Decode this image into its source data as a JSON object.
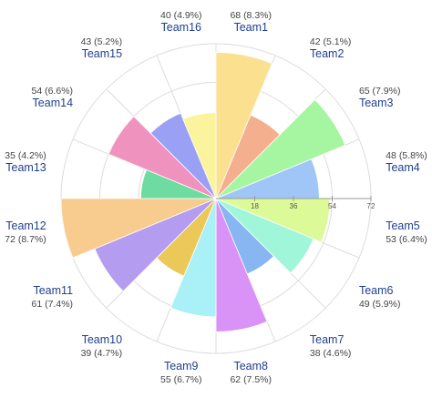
{
  "chart_data": {
    "type": "polar-area",
    "title": "",
    "radial_axis": {
      "min": 0,
      "max": 72,
      "ticks": [
        18,
        36,
        54,
        72
      ]
    },
    "grid": true,
    "legend": "none",
    "categories": [
      "Team1",
      "Team2",
      "Team3",
      "Team4",
      "Team5",
      "Team6",
      "Team7",
      "Team8",
      "Team9",
      "Team10",
      "Team11",
      "Team12",
      "Team13",
      "Team14",
      "Team15",
      "Team16"
    ],
    "values": [
      68,
      42,
      65,
      48,
      53,
      49,
      38,
      62,
      55,
      39,
      61,
      72,
      35,
      54,
      43,
      40
    ],
    "value_labels": [
      "68 (8.3%)",
      "42 (5.1%)",
      "65 (7.9%)",
      "48 (5.8%)",
      "53 (6.4%)",
      "49 (5.9%)",
      "38 (4.6%)",
      "62 (7.5%)",
      "55 (6.7%)",
      "39 (4.7%)",
      "61 (7.4%)",
      "72 (8.7%)",
      "35 (4.2%)",
      "54 (6.6%)",
      "43 (5.2%)",
      "40 (4.9%)"
    ],
    "colors": [
      "#fbe08f",
      "#f4b08e",
      "#a6f5a0",
      "#a0c6f7",
      "#dcfb98",
      "#9ff6d8",
      "#87b6f2",
      "#d992f5",
      "#a9f0f7",
      "#ecc858",
      "#b49cf1",
      "#f8cb8f",
      "#6edba0",
      "#ef93be",
      "#9aa0f3",
      "#fcf49c"
    ]
  }
}
